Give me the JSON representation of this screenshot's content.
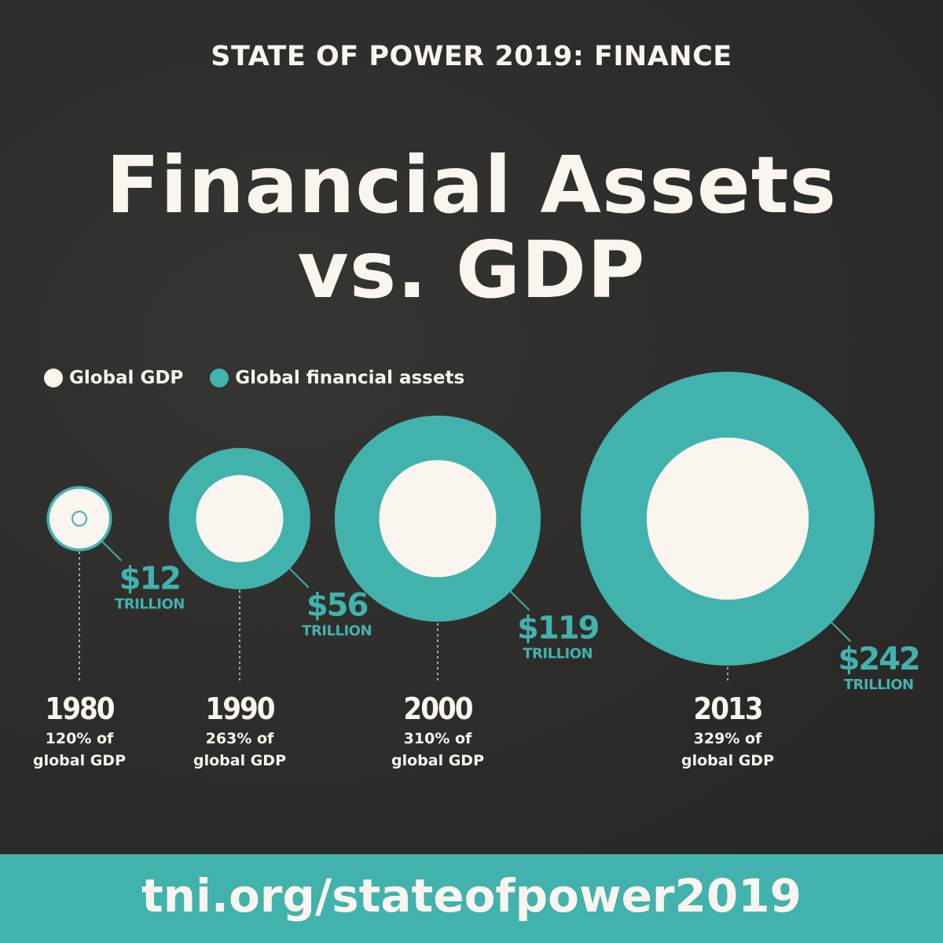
{
  "header": {
    "kicker": "STATE OF POWER 2019: FINANCE",
    "title_line1": "Financial Assets",
    "title_line2": "vs. GDP"
  },
  "legend": {
    "gdp_label": "Global GDP",
    "assets_label": "Global financial assets"
  },
  "colors": {
    "background": "#2d2c2a",
    "gdp": "#faf5ee",
    "assets": "#42b2ad",
    "footer": "#42b2ad"
  },
  "chart_data": {
    "type": "bubble",
    "series": [
      {
        "name": "Global GDP"
      },
      {
        "name": "Global financial assets"
      }
    ],
    "points": [
      {
        "year": "1980",
        "assets": 12,
        "assets_label": "$12",
        "unit_label": "TRILLION",
        "ratio_line1": "120% of",
        "ratio_line2": "global GDP",
        "percent_of_gdp": 120
      },
      {
        "year": "1990",
        "assets": 56,
        "assets_label": "$56",
        "unit_label": "TRILLION",
        "ratio_line1": "263% of",
        "ratio_line2": "global GDP",
        "percent_of_gdp": 263
      },
      {
        "year": "2000",
        "assets": 119,
        "assets_label": "$119",
        "unit_label": "TRILLION",
        "ratio_line1": "310% of",
        "ratio_line2": "global GDP",
        "percent_of_gdp": 310
      },
      {
        "year": "2013",
        "assets": 242,
        "assets_label": "$242",
        "unit_label": "TRILLION",
        "ratio_line1": "329% of",
        "ratio_line2": "global GDP",
        "percent_of_gdp": 329
      }
    ]
  },
  "footer": {
    "url": "tni.org/stateofpower2019"
  }
}
